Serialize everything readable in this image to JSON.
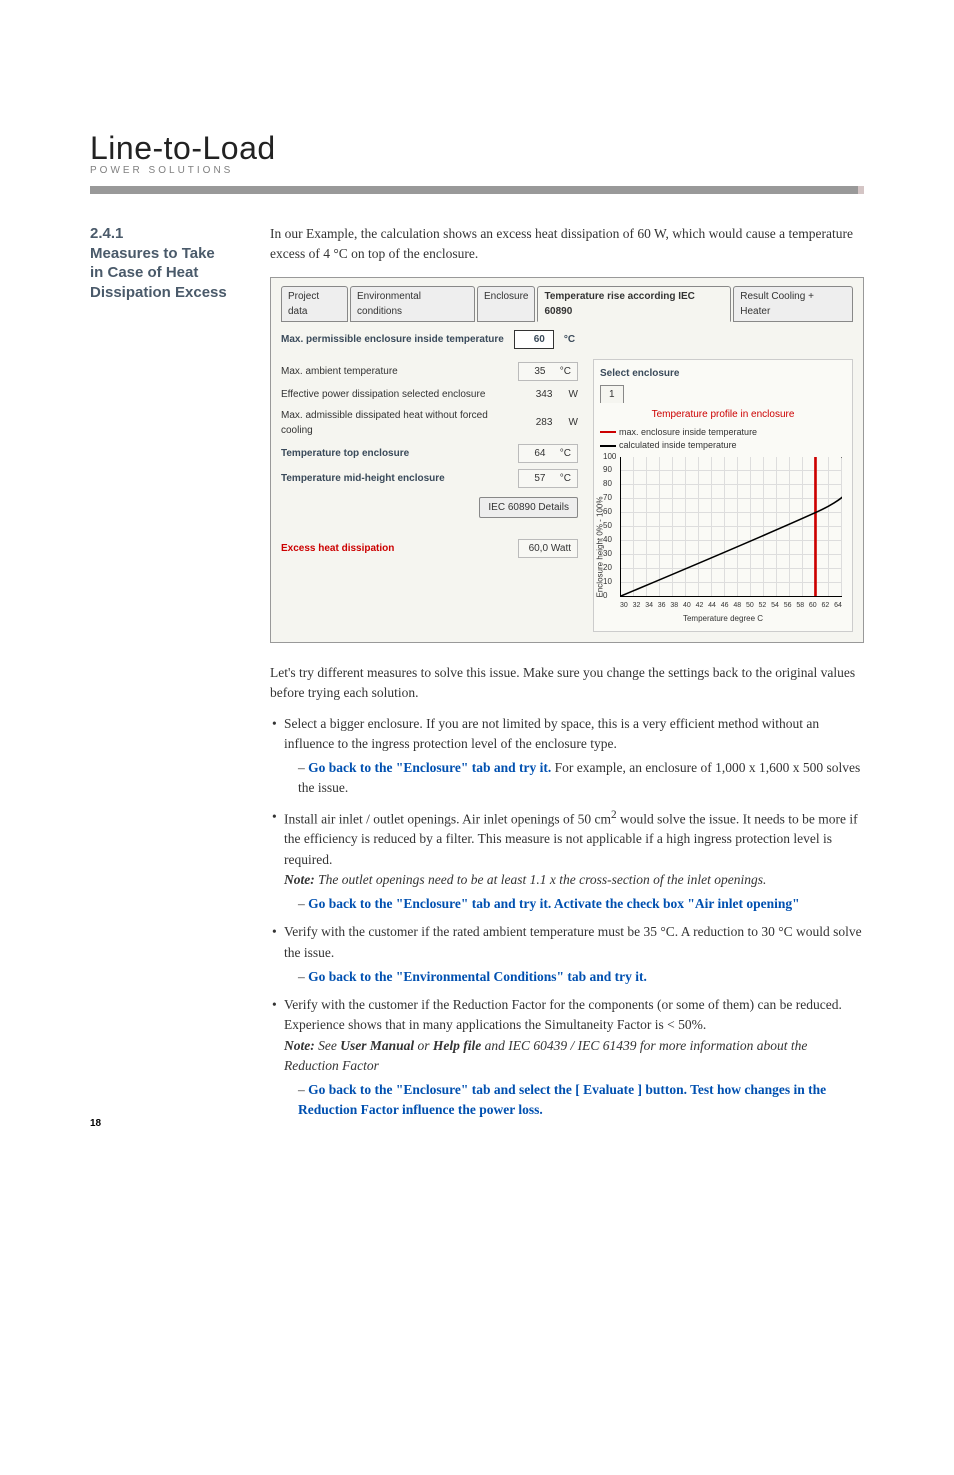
{
  "logo": {
    "title": "Line-to-Load",
    "subtitle": "POWER SOLUTIONS"
  },
  "sidebar": {
    "section_num": "2.4.1",
    "line1": "Measures to Take",
    "line2": "in Case of Heat",
    "line3": "Dissipation Excess"
  },
  "intro": "In our Example, the calculation shows an excess heat dissipation of 60 W, which would cause a temperature excess of 4 °C on top of the enclosure.",
  "screenshot": {
    "tabs": [
      "Project data",
      "Environmental conditions",
      "Enclosure",
      "Temperature rise according IEC 60890",
      "Result Cooling + Heater"
    ],
    "active_tab_index": 3,
    "max_perm_label": "Max. permissible enclosure inside temperature",
    "max_perm_value": "60",
    "max_perm_unit": "°C",
    "rows": [
      {
        "label": "Max. ambient temperature",
        "value": "35",
        "unit": "°C",
        "bold": false,
        "box": true
      },
      {
        "label": "Effective power dissipation selected enclosure",
        "value": "343",
        "unit": "W",
        "bold": false,
        "box": false
      },
      {
        "label": "Max. admissible dissipated heat without forced cooling",
        "value": "283",
        "unit": "W",
        "bold": false,
        "box": false
      },
      {
        "label": "Temperature top enclosure",
        "value": "64",
        "unit": "°C",
        "bold": true,
        "box": true
      },
      {
        "label": "Temperature mid-height enclosure",
        "value": "57",
        "unit": "°C",
        "bold": true,
        "box": true
      }
    ],
    "iec_button": "IEC 60890 Details",
    "excess_label": "Excess heat dissipation",
    "excess_value": "60,0",
    "excess_unit": "Watt",
    "select_enclosure": "Select enclosure",
    "enclosure_num": "1",
    "chart_title": "Temperature profile in enclosure",
    "legend1": "max. enclosure inside temperature",
    "legend1_color": "#cc0000",
    "legend2": "calculated inside temperature",
    "legend2_color": "#000000",
    "y_axis_label": "Enclosure height 0% - 100%",
    "x_axis_label": "Temperature degree C",
    "y_ticks": [
      "100",
      "90",
      "80",
      "70",
      "60",
      "50",
      "40",
      "30",
      "20",
      "10",
      "0"
    ],
    "x_ticks": [
      "30",
      "32",
      "34",
      "36",
      "38",
      "40",
      "42",
      "44",
      "46",
      "48",
      "50",
      "52",
      "54",
      "56",
      "58",
      "60",
      "62",
      "64"
    ]
  },
  "mid_para": "Let's try different measures to solve this issue. Make sure you change the settings back to the original values before trying each solution.",
  "bullets": {
    "b1_main": "Select a bigger enclosure. If you are not limited by space, this is a very efficient method without an influence to the ingress protection level of the enclosure type.",
    "b1_sub_blue": "Go back to the \"Enclosure\" tab and try it.",
    "b1_sub_rest": " For example, an enclosure of 1,000 x 1,600 x 500 solves the issue.",
    "b2_main_a": "Install air inlet / outlet openings. Air inlet openings of 50 cm",
    "b2_main_b": " would solve the issue. It needs to be more if the efficiency is reduced by a filter. This measure is not applicable if a high ingress protection level is required.",
    "b2_note_label": "Note:",
    "b2_note": " The outlet openings need to be at least 1.1 x the cross-section of the inlet openings.",
    "b2_sub_blue": "Go back to the \"Enclosure\" tab and try it. Activate the check box \"Air inlet opening\"",
    "b3_main": "Verify with the customer if the rated ambient temperature must be 35 °C. A reduction to 30 °C would solve the issue.",
    "b3_sub_blue": "Go back to the \"Environmental Conditions\" tab and try it.",
    "b4_main": "Verify with the customer if the Reduction Factor for the components (or some of them) can be reduced. Experience shows that in many applications the Simultaneity Factor is < 50%.",
    "b4_note_label": "Note:",
    "b4_note_a": " See ",
    "b4_note_usermanual": "User Manual",
    "b4_note_b": " or ",
    "b4_note_helpfile": "Help file",
    "b4_note_c": " and IEC 60439 / IEC 61439 for more information about the Reduction Factor",
    "b4_sub_blue": "Go back to the \"Enclosure\" tab and select the [ Evaluate ] button. Test how changes in the  Reduction Factor influence the power loss."
  },
  "page_number": "18"
}
